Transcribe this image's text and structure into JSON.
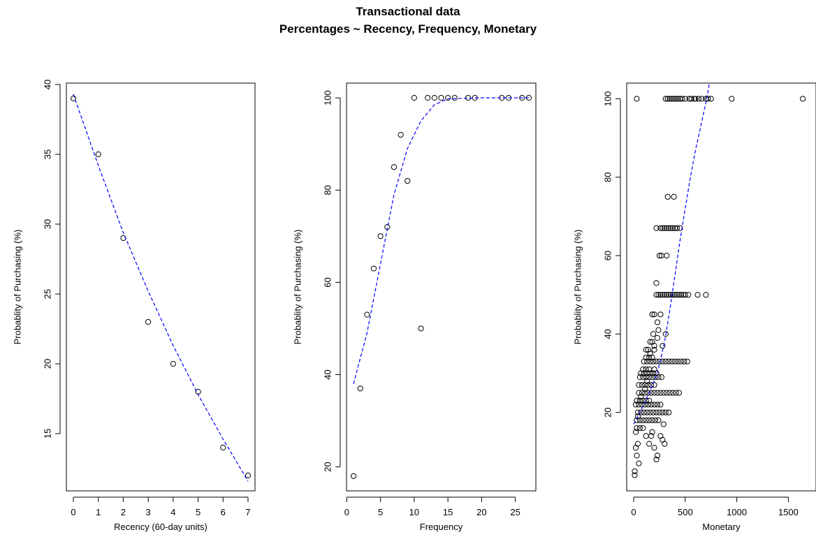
{
  "figure": {
    "title_line1": "Transactional data",
    "title_line2": "Percentages ~ Recency, Frequency, Monetary"
  },
  "colors": {
    "points": "#000000",
    "trend": "#0000ff",
    "frame": "#000000"
  },
  "chart_data": [
    {
      "type": "scatter",
      "xlabel": "Recency (60-day units)",
      "ylabel": "Probablity of Purchasing (%)",
      "xlim": [
        -0.28,
        7.28
      ],
      "ylim": [
        10.9,
        40.1
      ],
      "xticks": [
        0,
        1,
        2,
        3,
        4,
        5,
        6,
        7
      ],
      "yticks": [
        15,
        20,
        25,
        30,
        35,
        40
      ],
      "points": [
        [
          0,
          39
        ],
        [
          1,
          35
        ],
        [
          2,
          29
        ],
        [
          3,
          23
        ],
        [
          4,
          20
        ],
        [
          5,
          18
        ],
        [
          6,
          14
        ],
        [
          7,
          12
        ]
      ],
      "trend": [
        [
          0,
          39.3
        ],
        [
          1,
          34.2
        ],
        [
          2,
          29.4
        ],
        [
          3,
          25.2
        ],
        [
          4,
          21.3
        ],
        [
          5,
          17.8
        ],
        [
          6,
          14.6
        ],
        [
          7,
          11.6
        ]
      ]
    },
    {
      "type": "scatter",
      "xlabel": "Frequency",
      "ylabel": "Probablity of Purchasing (%)",
      "xlim": [
        -0.04,
        28.04
      ],
      "ylim": [
        14.8,
        103.2
      ],
      "xticks": [
        0,
        5,
        10,
        15,
        20,
        25
      ],
      "yticks": [
        20,
        40,
        60,
        80,
        100
      ],
      "points": [
        [
          1,
          18
        ],
        [
          2,
          37
        ],
        [
          3,
          53
        ],
        [
          4,
          63
        ],
        [
          5,
          70
        ],
        [
          6,
          72
        ],
        [
          7,
          85
        ],
        [
          8,
          92
        ],
        [
          9,
          82
        ],
        [
          10,
          100
        ],
        [
          11,
          50
        ],
        [
          12,
          100
        ],
        [
          13,
          100
        ],
        [
          14,
          100
        ],
        [
          15,
          100
        ],
        [
          16,
          100
        ],
        [
          18,
          100
        ],
        [
          19,
          100
        ],
        [
          23,
          100
        ],
        [
          24,
          100
        ],
        [
          26,
          100
        ],
        [
          27,
          100
        ]
      ],
      "trend": [
        [
          1,
          38
        ],
        [
          3,
          49
        ],
        [
          5,
          64
        ],
        [
          7,
          79
        ],
        [
          9,
          89
        ],
        [
          11,
          95
        ],
        [
          13,
          98.5
        ],
        [
          15,
          99.8
        ],
        [
          20,
          100
        ],
        [
          27,
          100
        ]
      ]
    },
    {
      "type": "scatter",
      "xlabel": "Monetary",
      "ylabel": "Probablity of Purchasing (%)",
      "xlim": [
        -68,
        1768
      ],
      "ylim": [
        0,
        104
      ],
      "xticks": [
        0,
        500,
        1000,
        1500
      ],
      "yticks": [
        20,
        40,
        60,
        80,
        100
      ],
      "points": [
        [
          30,
          100
        ],
        [
          310,
          100
        ],
        [
          330,
          100
        ],
        [
          350,
          100
        ],
        [
          370,
          100
        ],
        [
          390,
          100
        ],
        [
          410,
          100
        ],
        [
          430,
          100
        ],
        [
          450,
          100
        ],
        [
          470,
          100
        ],
        [
          500,
          100
        ],
        [
          540,
          100
        ],
        [
          560,
          100
        ],
        [
          590,
          100
        ],
        [
          600,
          100
        ],
        [
          630,
          100
        ],
        [
          660,
          100
        ],
        [
          700,
          100
        ],
        [
          720,
          100
        ],
        [
          750,
          100
        ],
        [
          950,
          100
        ],
        [
          1640,
          100
        ],
        [
          330,
          75
        ],
        [
          390,
          75
        ],
        [
          220,
          67
        ],
        [
          260,
          67
        ],
        [
          280,
          67
        ],
        [
          300,
          67
        ],
        [
          320,
          67
        ],
        [
          340,
          67
        ],
        [
          360,
          67
        ],
        [
          380,
          67
        ],
        [
          400,
          67
        ],
        [
          420,
          67
        ],
        [
          450,
          67
        ],
        [
          250,
          60
        ],
        [
          270,
          60
        ],
        [
          320,
          60
        ],
        [
          220,
          53
        ],
        [
          220,
          50
        ],
        [
          240,
          50
        ],
        [
          260,
          50
        ],
        [
          280,
          50
        ],
        [
          300,
          50
        ],
        [
          320,
          50
        ],
        [
          340,
          50
        ],
        [
          360,
          50
        ],
        [
          380,
          50
        ],
        [
          400,
          50
        ],
        [
          420,
          50
        ],
        [
          440,
          50
        ],
        [
          460,
          50
        ],
        [
          480,
          50
        ],
        [
          500,
          50
        ],
        [
          530,
          50
        ],
        [
          620,
          50
        ],
        [
          700,
          50
        ],
        [
          260,
          45
        ],
        [
          180,
          45
        ],
        [
          200,
          45
        ],
        [
          230,
          43
        ],
        [
          240,
          41
        ],
        [
          190,
          40
        ],
        [
          310,
          40
        ],
        [
          160,
          38
        ],
        [
          180,
          38
        ],
        [
          280,
          37
        ],
        [
          120,
          36
        ],
        [
          140,
          36
        ],
        [
          200,
          36
        ],
        [
          120,
          34
        ],
        [
          150,
          34
        ],
        [
          180,
          34
        ],
        [
          100,
          33
        ],
        [
          130,
          33
        ],
        [
          160,
          33
        ],
        [
          190,
          33
        ],
        [
          220,
          33
        ],
        [
          250,
          33
        ],
        [
          280,
          33
        ],
        [
          310,
          33
        ],
        [
          340,
          33
        ],
        [
          370,
          33
        ],
        [
          400,
          33
        ],
        [
          430,
          33
        ],
        [
          460,
          33
        ],
        [
          490,
          33
        ],
        [
          520,
          33
        ],
        [
          90,
          31
        ],
        [
          120,
          31
        ],
        [
          150,
          31
        ],
        [
          200,
          31
        ],
        [
          70,
          30
        ],
        [
          100,
          30
        ],
        [
          130,
          30
        ],
        [
          160,
          30
        ],
        [
          190,
          30
        ],
        [
          220,
          30
        ],
        [
          60,
          29
        ],
        [
          90,
          29
        ],
        [
          120,
          29
        ],
        [
          150,
          29
        ],
        [
          180,
          29
        ],
        [
          210,
          29
        ],
        [
          240,
          29
        ],
        [
          270,
          29
        ],
        [
          50,
          27
        ],
        [
          80,
          27
        ],
        [
          110,
          27
        ],
        [
          140,
          27
        ],
        [
          170,
          27
        ],
        [
          200,
          27
        ],
        [
          50,
          25
        ],
        [
          80,
          25
        ],
        [
          110,
          25
        ],
        [
          140,
          25
        ],
        [
          170,
          25
        ],
        [
          200,
          25
        ],
        [
          230,
          25
        ],
        [
          260,
          25
        ],
        [
          290,
          25
        ],
        [
          320,
          25
        ],
        [
          350,
          25
        ],
        [
          380,
          25
        ],
        [
          410,
          25
        ],
        [
          440,
          25
        ],
        [
          30,
          23
        ],
        [
          60,
          23
        ],
        [
          90,
          23
        ],
        [
          120,
          23
        ],
        [
          150,
          23
        ],
        [
          20,
          22
        ],
        [
          50,
          22
        ],
        [
          80,
          22
        ],
        [
          110,
          22
        ],
        [
          140,
          22
        ],
        [
          170,
          22
        ],
        [
          200,
          22
        ],
        [
          230,
          22
        ],
        [
          260,
          22
        ],
        [
          40,
          20
        ],
        [
          70,
          20
        ],
        [
          100,
          20
        ],
        [
          130,
          20
        ],
        [
          160,
          20
        ],
        [
          190,
          20
        ],
        [
          220,
          20
        ],
        [
          250,
          20
        ],
        [
          280,
          20
        ],
        [
          310,
          20
        ],
        [
          340,
          20
        ],
        [
          30,
          18
        ],
        [
          60,
          18
        ],
        [
          90,
          18
        ],
        [
          120,
          18
        ],
        [
          150,
          18
        ],
        [
          180,
          18
        ],
        [
          210,
          18
        ],
        [
          240,
          18
        ],
        [
          290,
          17
        ],
        [
          30,
          16
        ],
        [
          60,
          16
        ],
        [
          90,
          16
        ],
        [
          180,
          15
        ],
        [
          20,
          15
        ],
        [
          120,
          14
        ],
        [
          170,
          14
        ],
        [
          260,
          14
        ],
        [
          280,
          13
        ],
        [
          40,
          12
        ],
        [
          150,
          12
        ],
        [
          300,
          12
        ],
        [
          20,
          11
        ],
        [
          200,
          11
        ],
        [
          230,
          9
        ],
        [
          30,
          9
        ],
        [
          50,
          7
        ],
        [
          220,
          8
        ],
        [
          10,
          5
        ],
        [
          10,
          4
        ],
        [
          40,
          19
        ],
        [
          70,
          24
        ],
        [
          110,
          26
        ],
        [
          130,
          28
        ],
        [
          160,
          35
        ],
        [
          200,
          37
        ],
        [
          230,
          39
        ]
      ],
      "trend": [
        [
          0,
          17
        ],
        [
          80,
          21
        ],
        [
          150,
          25
        ],
        [
          230,
          30
        ],
        [
          300,
          38
        ],
        [
          350,
          46
        ],
        [
          400,
          55
        ],
        [
          450,
          64
        ],
        [
          500,
          72
        ],
        [
          550,
          80
        ],
        [
          600,
          87
        ],
        [
          650,
          93
        ],
        [
          700,
          99
        ],
        [
          735,
          104
        ]
      ]
    }
  ]
}
